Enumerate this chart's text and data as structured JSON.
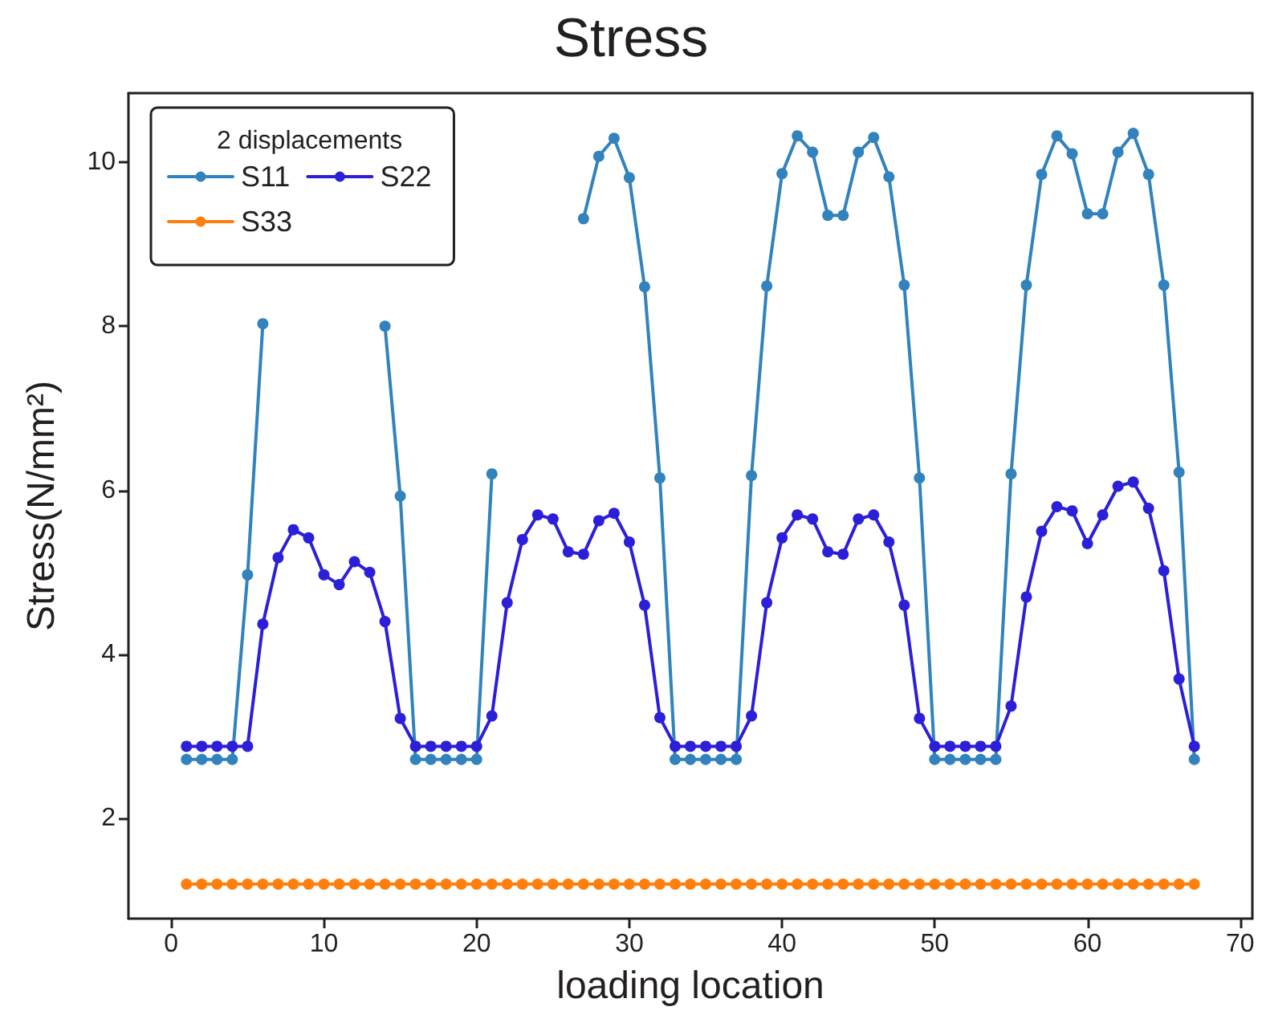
{
  "chart_data": {
    "type": "line",
    "title": "Stress",
    "xlabel": "loading location",
    "ylabel": "Stress(N/mm²)",
    "legend_title": "2 displacements",
    "legend": "top left",
    "grid": false,
    "marker": "circle",
    "line_style": "solid",
    "x": [
      1,
      2,
      3,
      4,
      5,
      6,
      7,
      8,
      9,
      10,
      11,
      12,
      13,
      14,
      15,
      16,
      17,
      18,
      19,
      20,
      21,
      22,
      23,
      24,
      25,
      26,
      27,
      28,
      29,
      30,
      31,
      32,
      33,
      34,
      35,
      36,
      37,
      38,
      39,
      40,
      41,
      42,
      43,
      44,
      45,
      46,
      47,
      48,
      49,
      50,
      51,
      52,
      53,
      54,
      55,
      56,
      57,
      58,
      59,
      60,
      61,
      62,
      63,
      64,
      65,
      66,
      67
    ],
    "xlim": [
      -2.8,
      70.8
    ],
    "xticks": [
      0,
      10,
      20,
      30,
      40,
      50,
      60,
      70
    ],
    "ylim": [
      0.78,
      10.84
    ],
    "yticks": [
      2,
      4,
      6,
      8,
      10
    ],
    "series": [
      {
        "name": "S11",
        "color": "#3182bd",
        "values": [
          2.72,
          2.72,
          2.72,
          2.72,
          4.97,
          8.03,
          null,
          null,
          null,
          null,
          null,
          null,
          null,
          8.0,
          5.93,
          2.72,
          2.72,
          2.72,
          2.72,
          2.72,
          6.2,
          null,
          null,
          null,
          null,
          null,
          9.31,
          10.07,
          10.29,
          9.81,
          8.48,
          6.15,
          2.72,
          2.72,
          2.72,
          2.72,
          2.72,
          6.18,
          8.49,
          9.86,
          10.32,
          10.12,
          9.35,
          9.35,
          10.12,
          10.3,
          9.82,
          8.5,
          6.15,
          2.72,
          2.72,
          2.72,
          2.72,
          2.72,
          6.2,
          8.5,
          9.85,
          10.32,
          10.1,
          9.37,
          9.37,
          10.12,
          10.35,
          9.85,
          8.5,
          6.22,
          2.72
        ]
      },
      {
        "name": "S22",
        "color": "#2b1fd9",
        "values": [
          2.88,
          2.88,
          2.88,
          2.88,
          2.88,
          4.37,
          5.18,
          5.52,
          5.42,
          4.97,
          4.85,
          5.13,
          5.0,
          4.4,
          3.22,
          2.88,
          2.88,
          2.88,
          2.88,
          2.88,
          3.25,
          4.63,
          5.4,
          5.7,
          5.65,
          5.25,
          5.22,
          5.63,
          5.72,
          5.37,
          4.6,
          3.23,
          2.88,
          2.88,
          2.88,
          2.88,
          2.88,
          3.25,
          4.63,
          5.42,
          5.7,
          5.65,
          5.25,
          5.22,
          5.65,
          5.7,
          5.37,
          4.6,
          3.22,
          2.88,
          2.88,
          2.88,
          2.88,
          2.88,
          3.37,
          4.7,
          5.5,
          5.8,
          5.75,
          5.35,
          5.7,
          6.05,
          6.1,
          5.78,
          5.02,
          3.7,
          2.88
        ]
      },
      {
        "name": "S33",
        "color": "#ff7f0e",
        "values": [
          1.2,
          1.2,
          1.2,
          1.2,
          1.2,
          1.2,
          1.2,
          1.2,
          1.2,
          1.2,
          1.2,
          1.2,
          1.2,
          1.2,
          1.2,
          1.2,
          1.2,
          1.2,
          1.2,
          1.2,
          1.2,
          1.2,
          1.2,
          1.2,
          1.2,
          1.2,
          1.2,
          1.2,
          1.2,
          1.2,
          1.2,
          1.2,
          1.2,
          1.2,
          1.2,
          1.2,
          1.2,
          1.2,
          1.2,
          1.2,
          1.2,
          1.2,
          1.2,
          1.2,
          1.2,
          1.2,
          1.2,
          1.2,
          1.2,
          1.2,
          1.2,
          1.2,
          1.2,
          1.2,
          1.2,
          1.2,
          1.2,
          1.2,
          1.2,
          1.2,
          1.2,
          1.2,
          1.2,
          1.2,
          1.2,
          1.2,
          1.2
        ]
      }
    ]
  }
}
